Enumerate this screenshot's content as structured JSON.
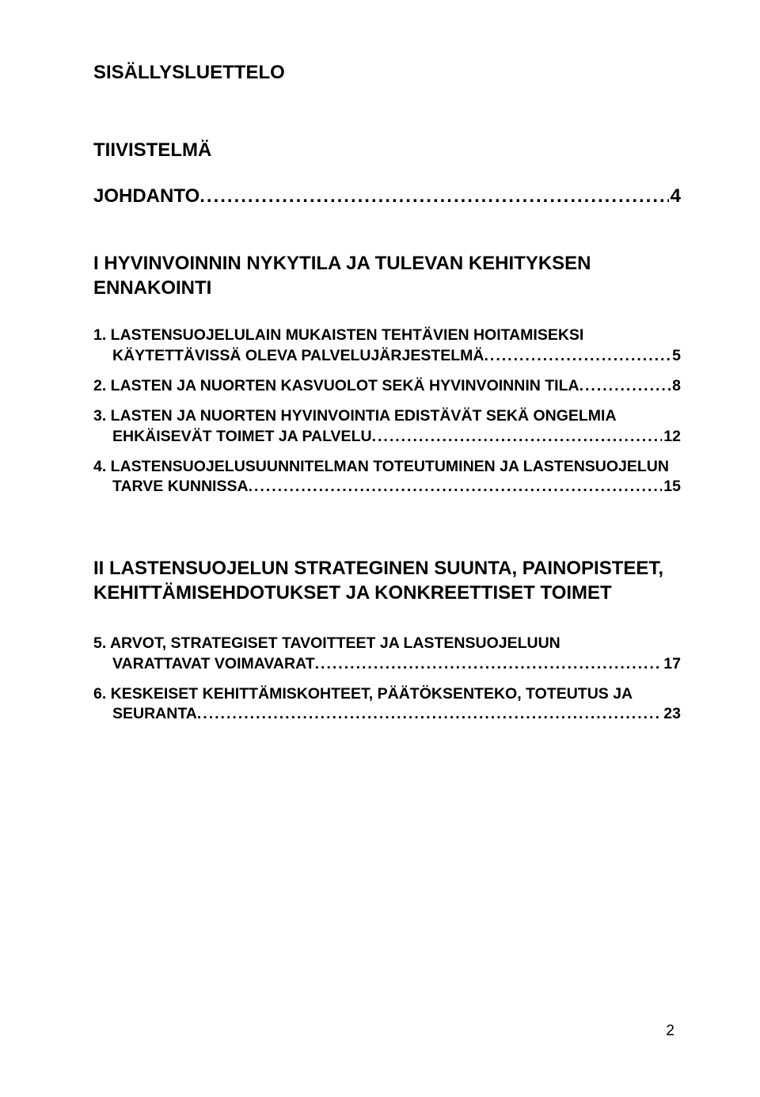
{
  "heading_main": "SISÄLLYSLUETTELO",
  "heading_tiiv": "TIIVISTELMÄ",
  "johdanto": {
    "label": "JOHDANTO",
    "page": "4"
  },
  "section1": {
    "title_l1": "I  HYVINVOINNIN NYKYTILA JA TULEVAN KEHITYKSEN",
    "title_l2": "ENNAKOINTI",
    "entries": [
      {
        "line1": "1. LASTENSUOJELULAIN MUKAISTEN TEHTÄVIEN HOITAMISEKSI",
        "line2": "KÄYTETTÄVISSÄ OLEVA PALVELUJÄRJESTELMÄ",
        "page": "5"
      },
      {
        "line1": "2. LASTEN JA NUORTEN KASVUOLOT SEKÄ HYVINVOINNIN TILA",
        "page": "8"
      },
      {
        "line1": "3. LASTEN JA NUORTEN HYVINVOINTIA EDISTÄVÄT SEKÄ ONGELMIA",
        "line2": "EHKÄISEVÄT TOIMET JA PALVELU",
        "page": "12"
      },
      {
        "line1": "4. LASTENSUOJELUSUUNNITELMAN TOTEUTUMINEN JA LASTENSUOJELUN",
        "line2": "TARVE KUNNISSA",
        "page": "15"
      }
    ]
  },
  "section2": {
    "title_l1": "II  LASTENSUOJELUN STRATEGINEN SUUNTA, PAINOPISTEET,",
    "title_l2": "KEHITTÄMISEHDOTUKSET JA KONKREETTISET TOIMET",
    "entries": [
      {
        "line1": "5. ARVOT, STRATEGISET TAVOITTEET JA LASTENSUOJELUUN",
        "line2": "VARATTAVAT VOIMAVARAT",
        "page": "17"
      },
      {
        "line1": "6. KESKEISET KEHITTÄMISKOHTEET, PÄÄTÖKSENTEKO, TOTEUTUS JA",
        "line2": "SEURANTA",
        "page": "23"
      }
    ]
  },
  "page_number": "2",
  "leader_dots": ".............................................................................................................................................."
}
